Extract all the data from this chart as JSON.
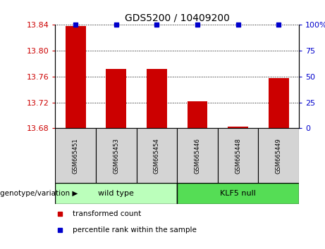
{
  "title": "GDS5200 / 10409200",
  "samples": [
    "GSM665451",
    "GSM665453",
    "GSM665454",
    "GSM665446",
    "GSM665448",
    "GSM665449"
  ],
  "bar_values": [
    13.838,
    13.772,
    13.772,
    13.722,
    13.682,
    13.758
  ],
  "percentile_values": [
    100,
    100,
    100,
    100,
    100,
    100
  ],
  "ylim_left": [
    13.68,
    13.84
  ],
  "ylim_right": [
    0,
    100
  ],
  "yticks_left": [
    13.68,
    13.72,
    13.76,
    13.8,
    13.84
  ],
  "yticks_right": [
    0,
    25,
    50,
    75,
    100
  ],
  "ytick_right_labels": [
    "0",
    "25",
    "50",
    "75",
    "100%"
  ],
  "bar_color": "#cc0000",
  "percentile_color": "#0000cc",
  "bar_bottom": 13.68,
  "group1_label": "wild type",
  "group2_label": "KLF5 null",
  "group1_indices": [
    0,
    1,
    2
  ],
  "group2_indices": [
    3,
    4,
    5
  ],
  "group1_color": "#bbffbb",
  "group2_color": "#55dd55",
  "sample_box_color": "#d4d4d4",
  "legend_red_label": "transformed count",
  "legend_blue_label": "percentile rank within the sample",
  "genotype_label": "genotype/variation",
  "tick_label_color_left": "#cc0000",
  "tick_label_color_right": "#0000cc",
  "bar_width": 0.5,
  "percentile_marker_size": 5,
  "title_fontsize": 10,
  "tick_fontsize": 8,
  "sample_fontsize": 6,
  "group_fontsize": 8,
  "legend_fontsize": 7.5
}
